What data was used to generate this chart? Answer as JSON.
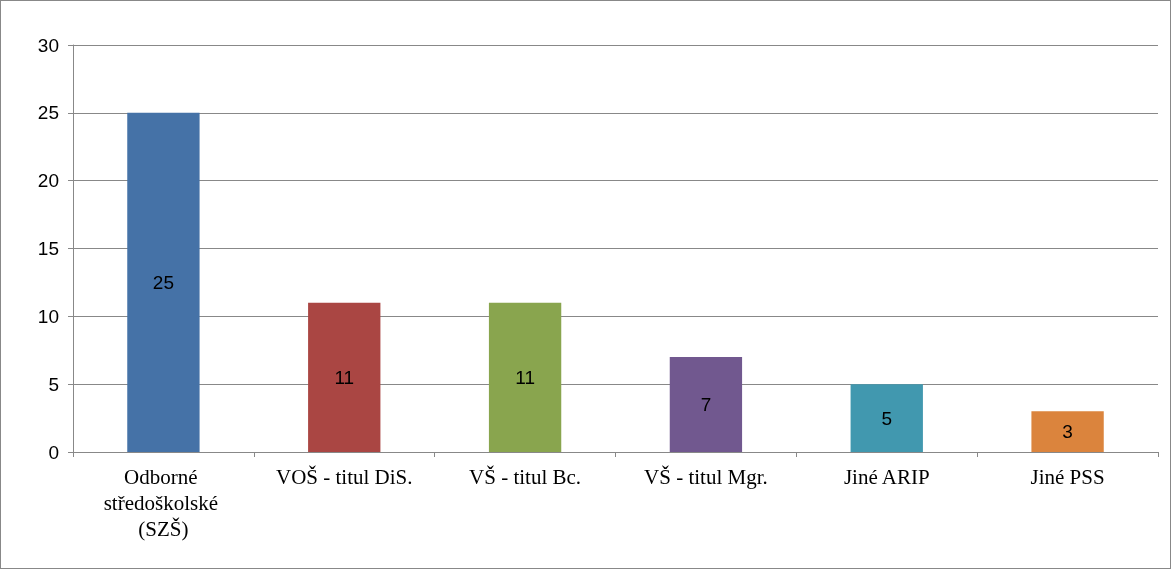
{
  "chart_data": {
    "type": "bar",
    "categories": [
      "Odborné středoškolské (SZŠ)",
      "VOŠ - titul DiS.",
      "VŠ - titul Bc.",
      "VŠ - titul Mgr.",
      "Jiné ARIP",
      "Jiné PSS"
    ],
    "values": [
      25,
      11,
      11,
      7,
      5,
      3
    ],
    "colors": [
      "#4572a7",
      "#aa4643",
      "#89a54e",
      "#71588f",
      "#4198af",
      "#db843d"
    ],
    "ylim": [
      0,
      30
    ],
    "yticks": [
      0,
      5,
      10,
      15,
      20,
      25,
      30
    ],
    "grid": "y",
    "data_labels": true
  }
}
